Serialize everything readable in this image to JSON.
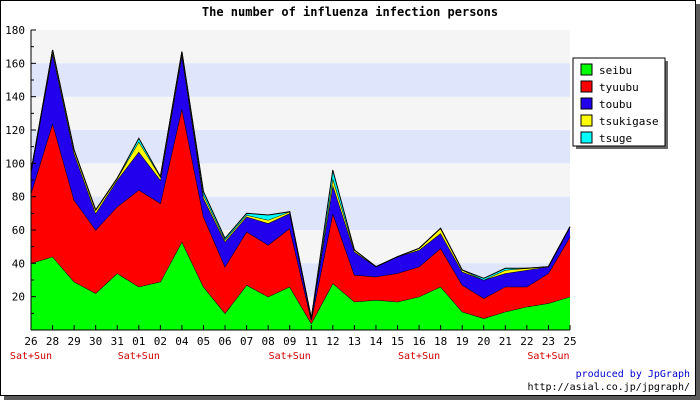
{
  "chart_data": {
    "type": "area",
    "stacked": true,
    "title": "The number of influenza infection persons",
    "categories": [
      "26",
      "28",
      "29",
      "30",
      "31",
      "01",
      "02",
      "04",
      "05",
      "06",
      "07",
      "08",
      "09",
      "11",
      "12",
      "13",
      "14",
      "15",
      "16",
      "18",
      "19",
      "20",
      "21",
      "22",
      "23",
      "25"
    ],
    "weekend_label": "Sat+Sun",
    "weekend_marks": [
      "26",
      "01",
      "09",
      "16",
      "23"
    ],
    "ylim": [
      0,
      180
    ],
    "yticks": [
      20,
      40,
      60,
      80,
      100,
      120,
      140,
      160,
      180
    ],
    "series": [
      {
        "name": "seibu",
        "color": "#00ff00",
        "values": [
          40,
          44,
          29,
          22,
          34,
          26,
          29,
          53,
          26,
          10,
          27,
          20,
          26,
          4,
          28,
          17,
          18,
          17,
          20,
          26,
          11,
          7,
          11,
          14,
          16,
          20
        ]
      },
      {
        "name": "tyuubu",
        "color": "#ff0000",
        "values": [
          42,
          80,
          49,
          38,
          40,
          58,
          47,
          80,
          42,
          28,
          32,
          31,
          35,
          2,
          42,
          16,
          14,
          17,
          18,
          23,
          16,
          12,
          15,
          12,
          18,
          36
        ]
      },
      {
        "name": "toubu",
        "color": "#2200ee",
        "values": [
          13,
          42,
          28,
          10,
          16,
          23,
          14,
          32,
          11,
          15,
          9,
          13,
          9,
          1,
          17,
          14,
          6,
          10,
          10,
          9,
          8,
          11,
          8,
          10,
          4,
          6
        ]
      },
      {
        "name": "tsukigase",
        "color": "#ffff00",
        "values": [
          0,
          2,
          2,
          2,
          1,
          6,
          2,
          2,
          2,
          1,
          1,
          2,
          1,
          0,
          4,
          1,
          0,
          0,
          1,
          3,
          1,
          0,
          2,
          1,
          0,
          0
        ]
      },
      {
        "name": "tsuge",
        "color": "#00ffff",
        "values": [
          0,
          0,
          0,
          0,
          0,
          2,
          0,
          0,
          2,
          1,
          1,
          3,
          0,
          0,
          5,
          0,
          0,
          0,
          0,
          0,
          0,
          1,
          1,
          0,
          0,
          0
        ]
      }
    ],
    "legend_position": "right",
    "grid": "alternating horizontal bands"
  },
  "credits": {
    "line1": "produced by JpGraph",
    "line2": "http://asial.co.jp/jpgraph/"
  }
}
